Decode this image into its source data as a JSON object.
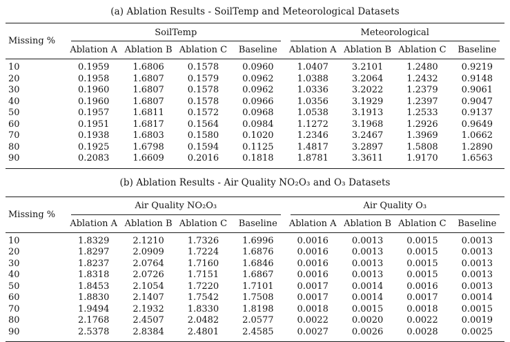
{
  "page": {
    "background": "#ffffff",
    "text_color": "#141414",
    "rule_color": "#1a1a1a"
  },
  "tables": [
    {
      "caption": "(a) Ablation Results - SoilTemp and Meteorological Datasets",
      "row_header": "Missing %",
      "groups": [
        {
          "label": "SoilTemp",
          "columns": [
            "Ablation A",
            "Ablation B",
            "Ablation C",
            "Baseline"
          ]
        },
        {
          "label": "Meteorological",
          "columns": [
            "Ablation A",
            "Ablation B",
            "Ablation C",
            "Baseline"
          ]
        }
      ],
      "rows": [
        {
          "missing": "10",
          "values": [
            "0.1959",
            "1.6806",
            "0.1578",
            "0.0960",
            "1.0407",
            "3.2101",
            "1.2480",
            "0.9219"
          ]
        },
        {
          "missing": "20",
          "values": [
            "0.1958",
            "1.6807",
            "0.1579",
            "0.0962",
            "1.0388",
            "3.2064",
            "1.2432",
            "0.9148"
          ]
        },
        {
          "missing": "30",
          "values": [
            "0.1960",
            "1.6807",
            "0.1578",
            "0.0962",
            "1.0336",
            "3.2022",
            "1.2379",
            "0.9061"
          ]
        },
        {
          "missing": "40",
          "values": [
            "0.1960",
            "1.6807",
            "0.1578",
            "0.0966",
            "1.0356",
            "3.1929",
            "1.2397",
            "0.9047"
          ]
        },
        {
          "missing": "50",
          "values": [
            "0.1957",
            "1.6811",
            "0.1572",
            "0.0968",
            "1.0538",
            "3.1913",
            "1.2533",
            "0.9137"
          ]
        },
        {
          "missing": "60",
          "values": [
            "0.1951",
            "1.6817",
            "0.1564",
            "0.0984",
            "1.1272",
            "3.1968",
            "1.2926",
            "0.9649"
          ]
        },
        {
          "missing": "70",
          "values": [
            "0.1938",
            "1.6803",
            "0.1580",
            "0.1020",
            "1.2346",
            "3.2467",
            "1.3969",
            "1.0662"
          ]
        },
        {
          "missing": "80",
          "values": [
            "0.1925",
            "1.6798",
            "0.1594",
            "0.1125",
            "1.4817",
            "3.2897",
            "1.5808",
            "1.2890"
          ]
        },
        {
          "missing": "90",
          "values": [
            "0.2083",
            "1.6609",
            "0.2016",
            "0.1818",
            "1.8781",
            "3.3611",
            "1.9170",
            "1.6563"
          ]
        }
      ]
    },
    {
      "caption": "(b) Ablation Results - Air Quality NO₂O₃ and O₃ Datasets",
      "row_header": "Missing %",
      "groups": [
        {
          "label": "Air Quality NO₂O₃",
          "columns": [
            "Ablation A",
            "Ablation B",
            "Ablation C",
            "Baseline"
          ]
        },
        {
          "label": "Air Quality O₃",
          "columns": [
            "Ablation A",
            "Ablation B",
            "Ablation C",
            "Baseline"
          ]
        }
      ],
      "rows": [
        {
          "missing": "10",
          "values": [
            "1.8329",
            "2.1210",
            "1.7326",
            "1.6996",
            "0.0016",
            "0.0013",
            "0.0015",
            "0.0013"
          ]
        },
        {
          "missing": "20",
          "values": [
            "1.8297",
            "2.0909",
            "1.7224",
            "1.6876",
            "0.0016",
            "0.0013",
            "0.0015",
            "0.0013"
          ]
        },
        {
          "missing": "30",
          "values": [
            "1.8237",
            "2.0764",
            "1.7160",
            "1.6846",
            "0.0016",
            "0.0013",
            "0.0015",
            "0.0013"
          ]
        },
        {
          "missing": "40",
          "values": [
            "1.8318",
            "2.0726",
            "1.7151",
            "1.6867",
            "0.0016",
            "0.0013",
            "0.0015",
            "0.0013"
          ]
        },
        {
          "missing": "50",
          "values": [
            "1.8453",
            "2.1054",
            "1.7220",
            "1.7101",
            "0.0017",
            "0.0014",
            "0.0016",
            "0.0013"
          ]
        },
        {
          "missing": "60",
          "values": [
            "1.8830",
            "2.1407",
            "1.7542",
            "1.7508",
            "0.0017",
            "0.0014",
            "0.0017",
            "0.0014"
          ]
        },
        {
          "missing": "70",
          "values": [
            "1.9494",
            "2.1932",
            "1.8330",
            "1.8198",
            "0.0018",
            "0.0015",
            "0.0018",
            "0.0015"
          ]
        },
        {
          "missing": "80",
          "values": [
            "2.1768",
            "2.4507",
            "2.0482",
            "2.0577",
            "0.0022",
            "0.0020",
            "0.0022",
            "0.0019"
          ]
        },
        {
          "missing": "90",
          "values": [
            "2.5378",
            "2.8384",
            "2.4801",
            "2.4585",
            "0.0027",
            "0.0026",
            "0.0028",
            "0.0025"
          ]
        }
      ]
    }
  ]
}
